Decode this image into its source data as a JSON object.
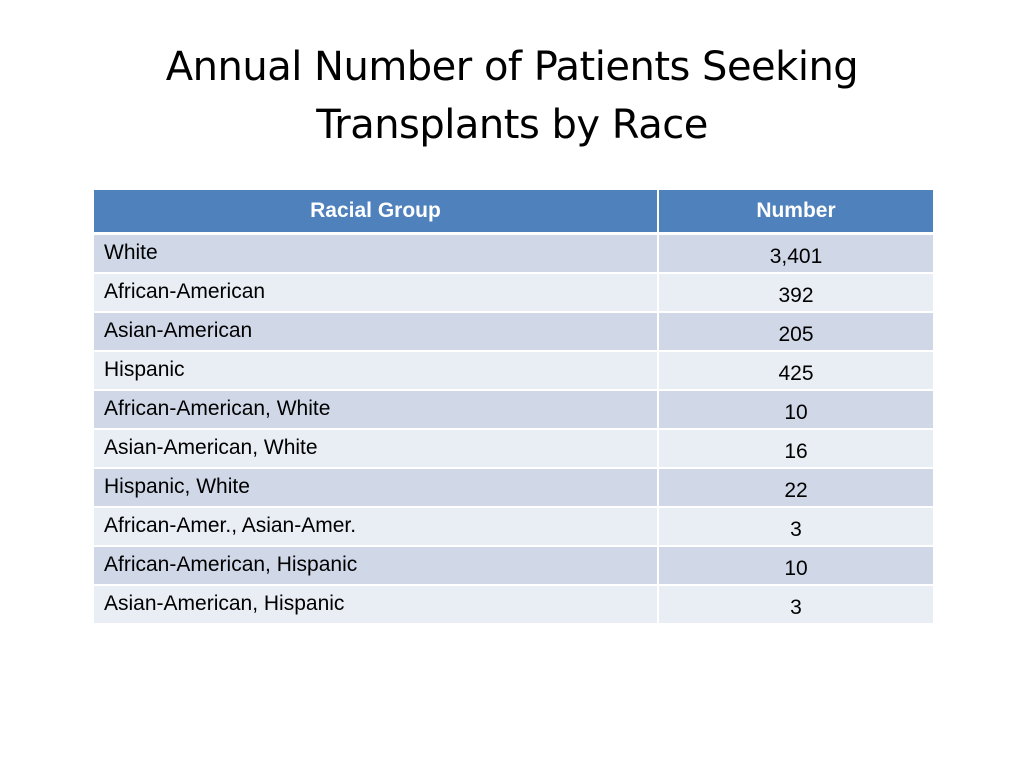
{
  "title": {
    "line1": "Annual Number of Patients Seeking",
    "line2": "Transplants by Race"
  },
  "table": {
    "headers": [
      "Racial Group",
      "Number"
    ],
    "rows": [
      {
        "group": "White",
        "number": "3,401"
      },
      {
        "group": "African-American",
        "number": "392"
      },
      {
        "group": "Asian-American",
        "number": "205"
      },
      {
        "group": "Hispanic",
        "number": "425"
      },
      {
        "group": "African-American, White",
        "number": "10"
      },
      {
        "group": "Asian-American, White",
        "number": "16"
      },
      {
        "group": "Hispanic, White",
        "number": "22"
      },
      {
        "group": "African-Amer., Asian-Amer.",
        "number": "3"
      },
      {
        "group": "African-American, Hispanic",
        "number": "10"
      },
      {
        "group": "Asian-American, Hispanic",
        "number": "3"
      }
    ]
  },
  "colors": {
    "header": "#4f81bd",
    "row_band_dark": "#d0d8e8",
    "row_band_light": "#e9edf4"
  }
}
